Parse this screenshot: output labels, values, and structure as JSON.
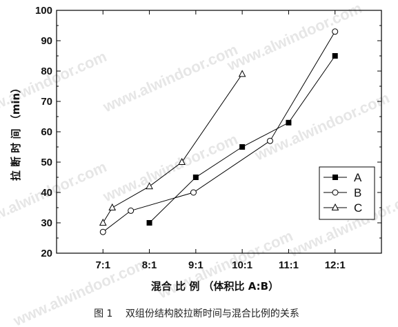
{
  "chart_data": {
    "type": "line",
    "xlabel": "混合 比 例 （体积比 A:B）",
    "ylabel": "拉 断 时 间 （min）",
    "xlim": [
      7,
      12
    ],
    "ylim": [
      20,
      100
    ],
    "x_ticks": [
      7,
      8,
      9,
      10,
      11,
      12
    ],
    "x_tick_labels": [
      "7:1",
      "8:1",
      "9:1",
      "10:1",
      "11:1",
      "12:1"
    ],
    "y_ticks": [
      20,
      30,
      40,
      50,
      60,
      70,
      80,
      90,
      100
    ],
    "y_tick_labels": [
      "20",
      "30",
      "40",
      "50",
      "60",
      "70",
      "80",
      "90",
      "100"
    ],
    "grid": false,
    "legend_position": "right-middle",
    "series": [
      {
        "name": "A",
        "marker": "square-filled",
        "color": "#000000",
        "x": [
          8,
          9,
          10,
          11,
          12
        ],
        "y": [
          30,
          45,
          55,
          63,
          85
        ]
      },
      {
        "name": "B",
        "marker": "circle-open",
        "color": "#000000",
        "x": [
          7,
          7.6,
          8.95,
          10.6,
          12
        ],
        "y": [
          27,
          34,
          40,
          57,
          93
        ]
      },
      {
        "name": "C",
        "marker": "triangle-open",
        "color": "#000000",
        "x": [
          7,
          7.2,
          8,
          8.7,
          10
        ],
        "y": [
          30,
          35,
          42,
          50,
          79
        ]
      }
    ]
  },
  "caption": "图 1　 双组份结构胶拉断时间与混合比例的关系",
  "watermark": "www.alwindoor.com"
}
